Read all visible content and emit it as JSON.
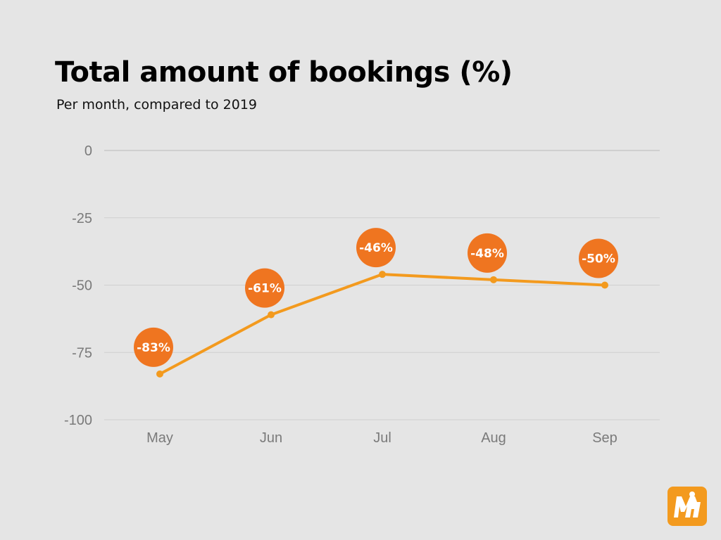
{
  "title": "Total amount of bookings (%)",
  "subtitle": "Per month, compared to 2019",
  "colors": {
    "background": "#e5e5e5",
    "line": "#f39a1e",
    "bubble": "#ef7520",
    "gridline": "#cfcfcf",
    "tick_text": "#7a7a7a",
    "logo": "#f39a1e"
  },
  "logo_icon": "brand-logo-icon",
  "chart_data": {
    "type": "line",
    "categories": [
      "May",
      "Jun",
      "Jul",
      "Aug",
      "Sep"
    ],
    "values": [
      -83,
      -61,
      -46,
      -48,
      -50
    ],
    "data_labels": [
      "-83%",
      "-61%",
      "-46%",
      "-48%",
      "-50%"
    ],
    "yticks": [
      0,
      -25,
      -50,
      -75,
      -100
    ],
    "ylim": [
      -100,
      0
    ],
    "grid": true,
    "legend": "none"
  }
}
